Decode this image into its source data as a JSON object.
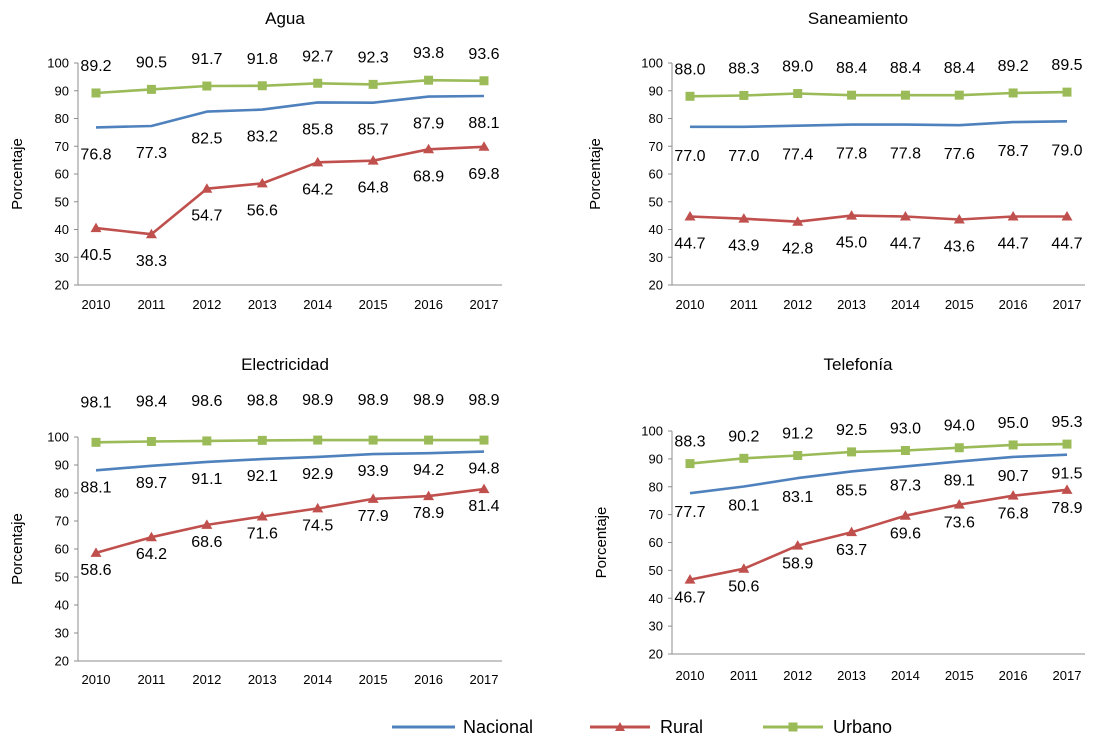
{
  "legend": [
    {
      "name": "Nacional",
      "color": "#4f81bd",
      "marker": "none"
    },
    {
      "name": "Rural",
      "color": "#c0504d",
      "marker": "triangle"
    },
    {
      "name": "Urbano",
      "color": "#9bbb59",
      "marker": "square"
    }
  ],
  "chart_data": [
    {
      "type": "line",
      "title": "Agua",
      "ylabel": "Porcentaje",
      "x": [
        "2010",
        "2011",
        "2012",
        "2013",
        "2014",
        "2015",
        "2016",
        "2017"
      ],
      "ylim": [
        20,
        100
      ],
      "yticks": [
        "20",
        "30",
        "40",
        "50",
        "60",
        "70",
        "80",
        "90",
        "100"
      ],
      "series": [
        {
          "name": "Nacional",
          "values": [
            76.8,
            77.3,
            82.5,
            83.2,
            85.8,
            85.7,
            87.9,
            88.1
          ],
          "labels": [
            "76.8",
            "77.3",
            "82.5",
            "83.2",
            "85.8",
            "85.7",
            "87.9",
            "88.1"
          ]
        },
        {
          "name": "Rural",
          "values": [
            40.5,
            38.3,
            54.7,
            56.6,
            64.2,
            64.8,
            68.9,
            69.8
          ],
          "labels": [
            "40.5",
            "38.3",
            "54.7",
            "56.6",
            "64.2",
            "64.8",
            "68.9",
            "69.8"
          ]
        },
        {
          "name": "Urbano",
          "values": [
            89.2,
            90.5,
            91.7,
            91.8,
            92.7,
            92.3,
            93.8,
            93.6
          ],
          "labels": [
            "89.2",
            "90.5",
            "91.7",
            "91.8",
            "92.7",
            "92.3",
            "93.8",
            "93.6"
          ]
        }
      ]
    },
    {
      "type": "line",
      "title": "Saneamiento",
      "ylabel": "Porcentaje",
      "x": [
        "2010",
        "2011",
        "2012",
        "2013",
        "2014",
        "2015",
        "2016",
        "2017"
      ],
      "ylim": [
        20,
        100
      ],
      "yticks": [
        "20",
        "30",
        "40",
        "50",
        "60",
        "70",
        "80",
        "90",
        "100"
      ],
      "series": [
        {
          "name": "Nacional",
          "values": [
            77.0,
            77.0,
            77.4,
            77.8,
            77.8,
            77.6,
            78.7,
            79.0
          ],
          "labels": [
            "77.0",
            "77.0",
            "77.4",
            "77.8",
            "77.8",
            "77.6",
            "78.7",
            "79.0"
          ]
        },
        {
          "name": "Rural",
          "values": [
            44.7,
            43.9,
            42.8,
            45.0,
            44.7,
            43.6,
            44.7,
            44.7
          ],
          "labels": [
            "44.7",
            "43.9",
            "42.8",
            "45.0",
            "44.7",
            "43.6",
            "44.7",
            "44.7"
          ]
        },
        {
          "name": "Urbano",
          "values": [
            88.0,
            88.3,
            89.0,
            88.4,
            88.4,
            88.4,
            89.2,
            89.5
          ],
          "labels": [
            "88.0",
            "88.3",
            "89.0",
            "88.4",
            "88.4",
            "88.4",
            "89.2",
            "89.5"
          ]
        }
      ]
    },
    {
      "type": "line",
      "title": "Electricidad",
      "ylabel": "Porcentaje",
      "x": [
        "2010",
        "2011",
        "2012",
        "2013",
        "2014",
        "2015",
        "2016",
        "2017"
      ],
      "ylim": [
        20,
        100
      ],
      "yticks": [
        "20",
        "30",
        "40",
        "50",
        "60",
        "70",
        "80",
        "90",
        "100"
      ],
      "series": [
        {
          "name": "Nacional",
          "values": [
            88.1,
            89.7,
            91.1,
            92.1,
            92.9,
            93.9,
            94.2,
            94.8
          ],
          "labels": [
            "88.1",
            "89.7",
            "91.1",
            "92.1",
            "92.9",
            "93.9",
            "94.2",
            "94.8"
          ]
        },
        {
          "name": "Rural",
          "values": [
            58.6,
            64.2,
            68.6,
            71.6,
            74.5,
            77.9,
            78.9,
            81.4
          ],
          "labels": [
            "58.6",
            "64.2",
            "68.6",
            "71.6",
            "74.5",
            "77.9",
            "78.9",
            "81.4"
          ]
        },
        {
          "name": "Urbano",
          "values": [
            98.1,
            98.4,
            98.6,
            98.8,
            98.9,
            98.9,
            98.9,
            98.9
          ],
          "labels": [
            "98.1",
            "98.4",
            "98.6",
            "98.8",
            "98.9",
            "98.9",
            "98.9",
            "98.9"
          ]
        }
      ]
    },
    {
      "type": "line",
      "title": "Telefonía",
      "ylabel": "Porcentaje",
      "x": [
        "2010",
        "2011",
        "2012",
        "2013",
        "2014",
        "2015",
        "2016",
        "2017"
      ],
      "ylim": [
        20,
        100
      ],
      "yticks": [
        "20",
        "30",
        "40",
        "50",
        "60",
        "70",
        "80",
        "90",
        "100"
      ],
      "series": [
        {
          "name": "Nacional",
          "values": [
            77.7,
            80.1,
            83.1,
            85.5,
            87.3,
            89.1,
            90.7,
            91.5
          ],
          "labels": [
            "77.7",
            "80.1",
            "83.1",
            "85.5",
            "87.3",
            "89.1",
            "90.7",
            "91.5"
          ]
        },
        {
          "name": "Rural",
          "values": [
            46.7,
            50.6,
            58.9,
            63.7,
            69.6,
            73.6,
            76.8,
            78.9
          ],
          "labels": [
            "46.7",
            "50.6",
            "58.9",
            "63.7",
            "69.6",
            "73.6",
            "76.8",
            "78.9"
          ]
        },
        {
          "name": "Urbano",
          "values": [
            88.3,
            90.2,
            91.2,
            92.5,
            93.0,
            94.0,
            95.0,
            95.3
          ],
          "labels": [
            "88.3",
            "90.2",
            "91.2",
            "92.5",
            "93.0",
            "94.0",
            "95.0",
            "95.3"
          ]
        }
      ]
    }
  ]
}
